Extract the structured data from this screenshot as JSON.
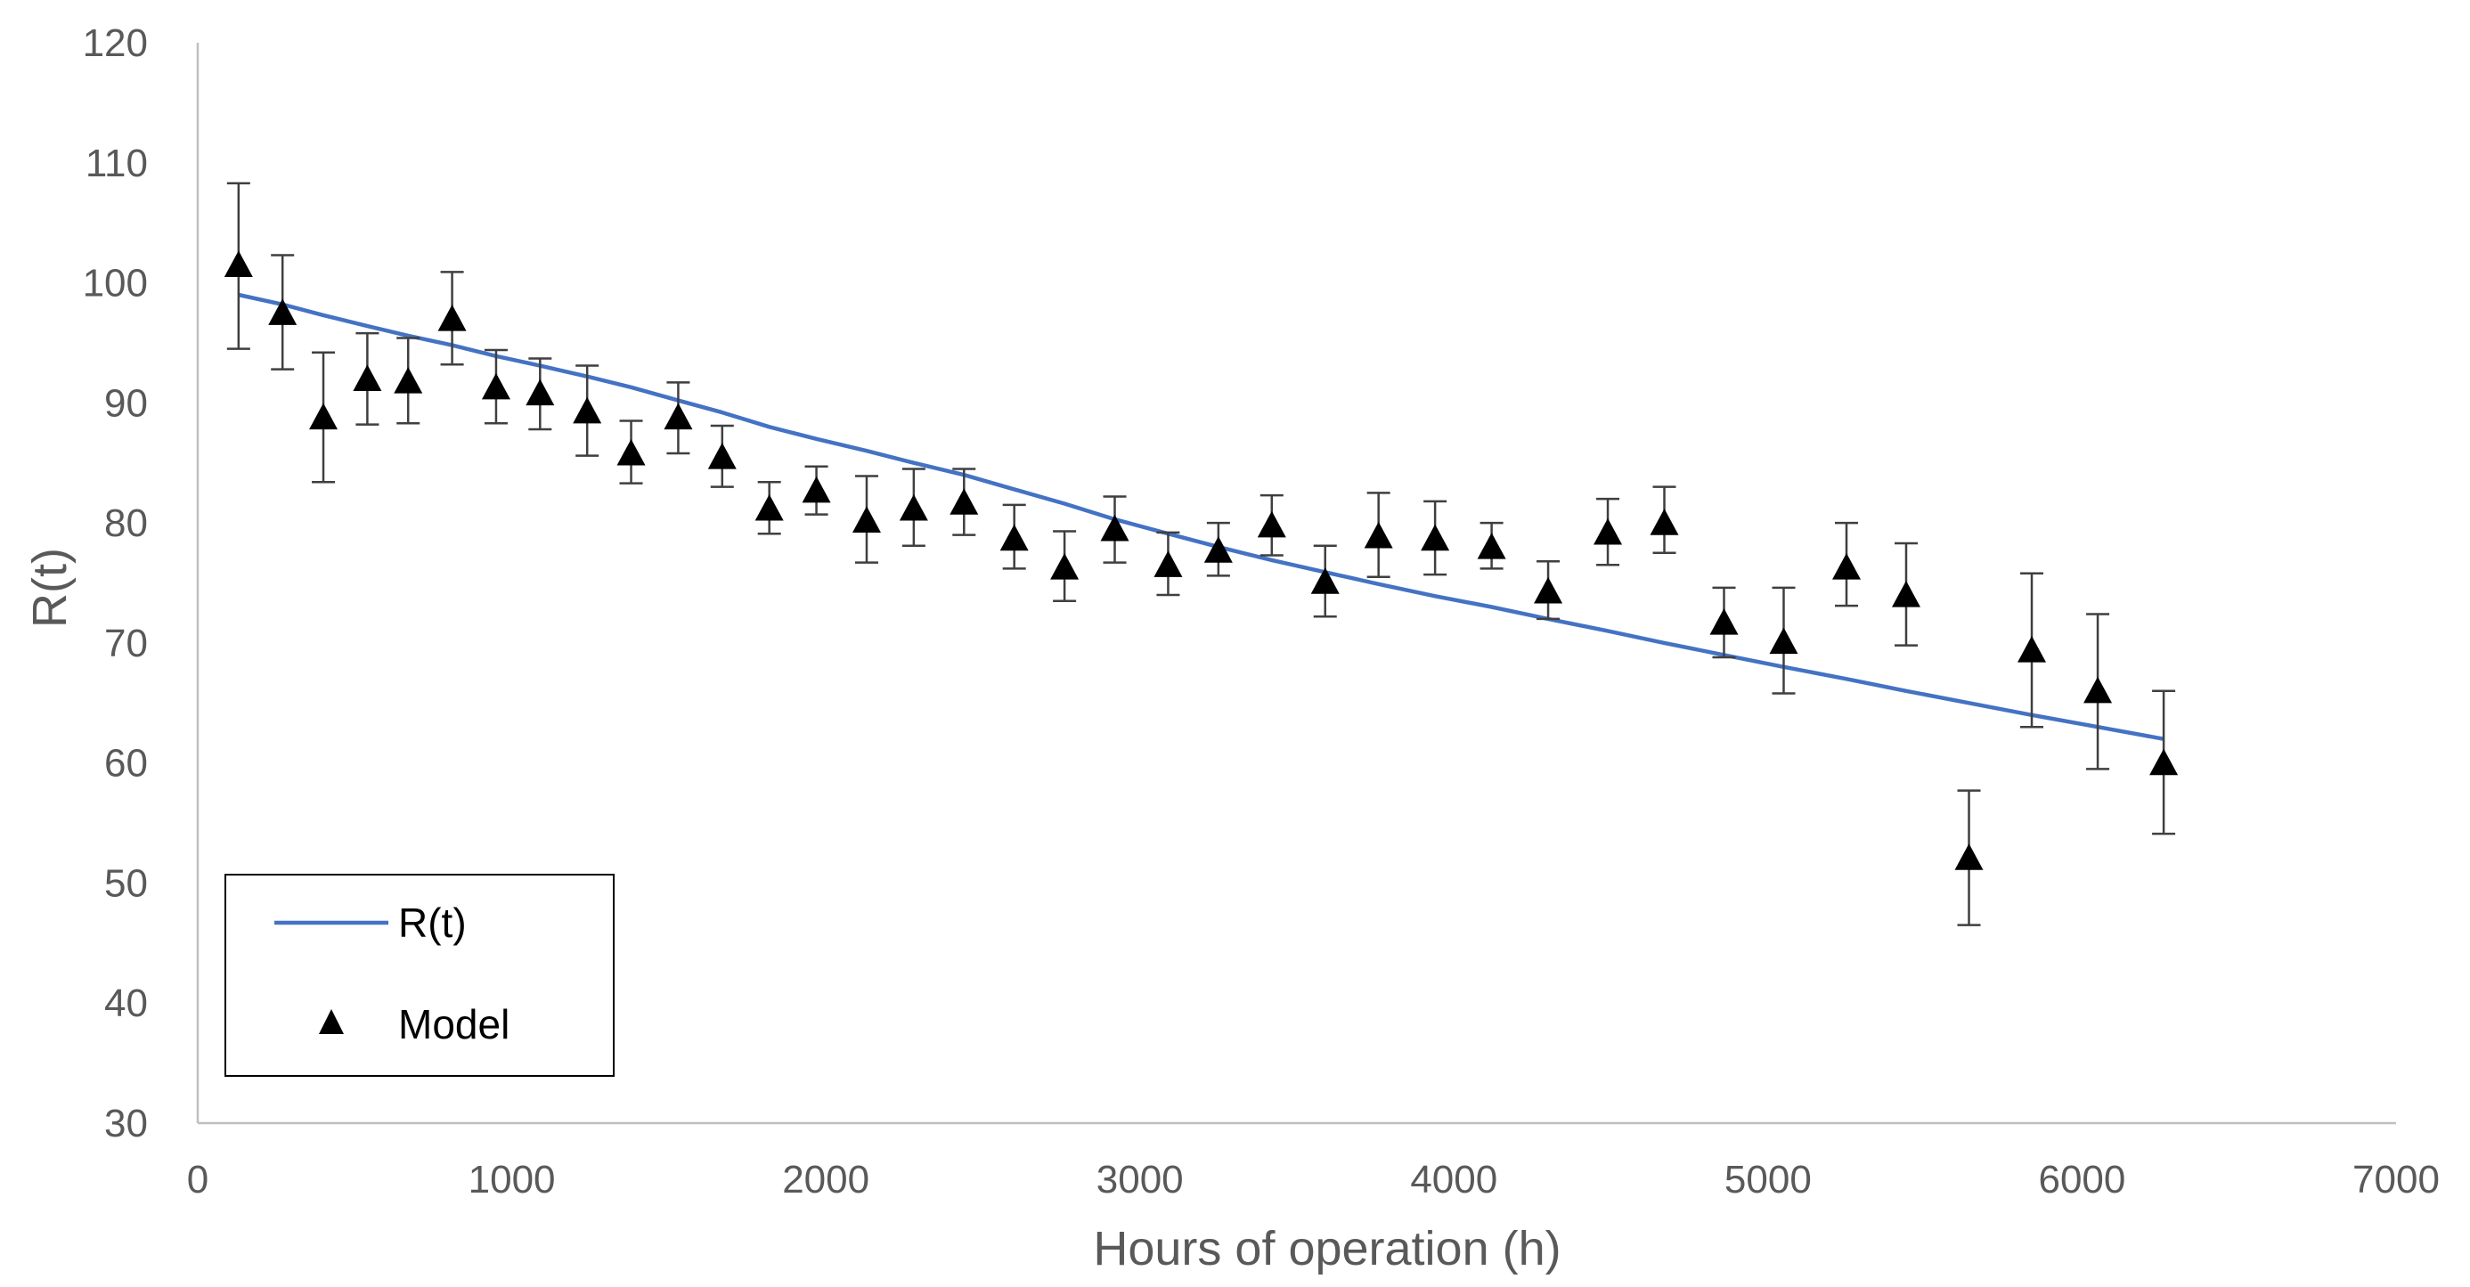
{
  "chart_data": {
    "type": "scatter",
    "xlabel": "Hours of operation (h)",
    "ylabel": "R(t)",
    "xlim": [
      0,
      7000
    ],
    "ylim": [
      30,
      120
    ],
    "x_ticks": [
      0,
      1000,
      2000,
      3000,
      4000,
      5000,
      6000,
      7000
    ],
    "y_ticks": [
      30,
      40,
      50,
      60,
      70,
      80,
      90,
      100,
      110,
      120
    ],
    "grid": false,
    "legend_position": "bottom-left",
    "colors": {
      "line": "#4472C4",
      "marker": "#000000",
      "axis": "#bfbfbf",
      "text": "#595959"
    },
    "series": [
      {
        "name": "R(t)",
        "kind": "line",
        "x": [
          130,
          270,
          400,
          540,
          670,
          810,
          950,
          1090,
          1240,
          1380,
          1530,
          1670,
          1820,
          1970,
          2130,
          2280,
          2440,
          2600,
          2760,
          2920,
          3090,
          3250,
          3420,
          3590,
          3760,
          3940,
          4120,
          4300,
          4490,
          4670,
          4860,
          5050,
          5250,
          5440,
          5640,
          5840,
          6050,
          6260
        ],
        "values": [
          99.0,
          98.2,
          97.3,
          96.4,
          95.6,
          94.8,
          93.9,
          93.1,
          92.2,
          91.3,
          90.2,
          89.2,
          88.0,
          87.0,
          86.0,
          85.0,
          84.0,
          82.8,
          81.6,
          80.3,
          79.1,
          78.0,
          76.9,
          75.9,
          74.9,
          73.9,
          73.0,
          72.0,
          71.0,
          70.0,
          69.0,
          68.0,
          67.0,
          66.0,
          65.0,
          64.0,
          63.0,
          62.0
        ]
      },
      {
        "name": "Model",
        "kind": "scatter",
        "x": [
          130,
          270,
          400,
          540,
          670,
          810,
          950,
          1090,
          1240,
          1380,
          1530,
          1670,
          1820,
          1970,
          2130,
          2280,
          2440,
          2600,
          2760,
          2920,
          3090,
          3250,
          3420,
          3590,
          3760,
          3940,
          4120,
          4300,
          4490,
          4670,
          4860,
          5050,
          5250,
          5440,
          5640,
          5840,
          6050,
          6260
        ],
        "values": [
          101.5,
          97.5,
          88.8,
          92.0,
          91.8,
          97.0,
          91.3,
          90.8,
          89.3,
          85.8,
          88.8,
          85.5,
          81.2,
          82.7,
          80.2,
          81.2,
          81.7,
          78.7,
          76.3,
          79.5,
          76.5,
          77.7,
          79.8,
          75.1,
          78.9,
          78.7,
          78.0,
          74.3,
          79.2,
          80.0,
          71.7,
          70.1,
          76.3,
          74.0,
          52.1,
          69.4,
          66.0,
          60.0
        ],
        "error_low": [
          94.5,
          92.8,
          83.4,
          88.2,
          88.3,
          93.2,
          88.3,
          87.8,
          85.6,
          83.3,
          85.8,
          83.0,
          79.1,
          80.7,
          76.7,
          78.1,
          79.0,
          76.2,
          73.5,
          76.7,
          74.0,
          75.6,
          77.3,
          72.2,
          75.5,
          75.7,
          76.2,
          72.0,
          76.5,
          77.5,
          68.8,
          65.8,
          73.1,
          69.8,
          46.5,
          63.0,
          59.5,
          54.1
        ],
        "error_high": [
          108.3,
          102.3,
          94.2,
          95.8,
          95.4,
          100.9,
          94.4,
          93.7,
          93.1,
          88.5,
          91.7,
          88.1,
          83.4,
          84.7,
          83.9,
          84.5,
          84.5,
          81.5,
          79.3,
          82.2,
          79.2,
          80.0,
          82.3,
          78.1,
          82.5,
          81.8,
          80.0,
          76.8,
          82.0,
          83.0,
          74.6,
          74.6,
          80.0,
          78.3,
          57.7,
          75.8,
          72.4,
          66.0
        ]
      }
    ]
  }
}
